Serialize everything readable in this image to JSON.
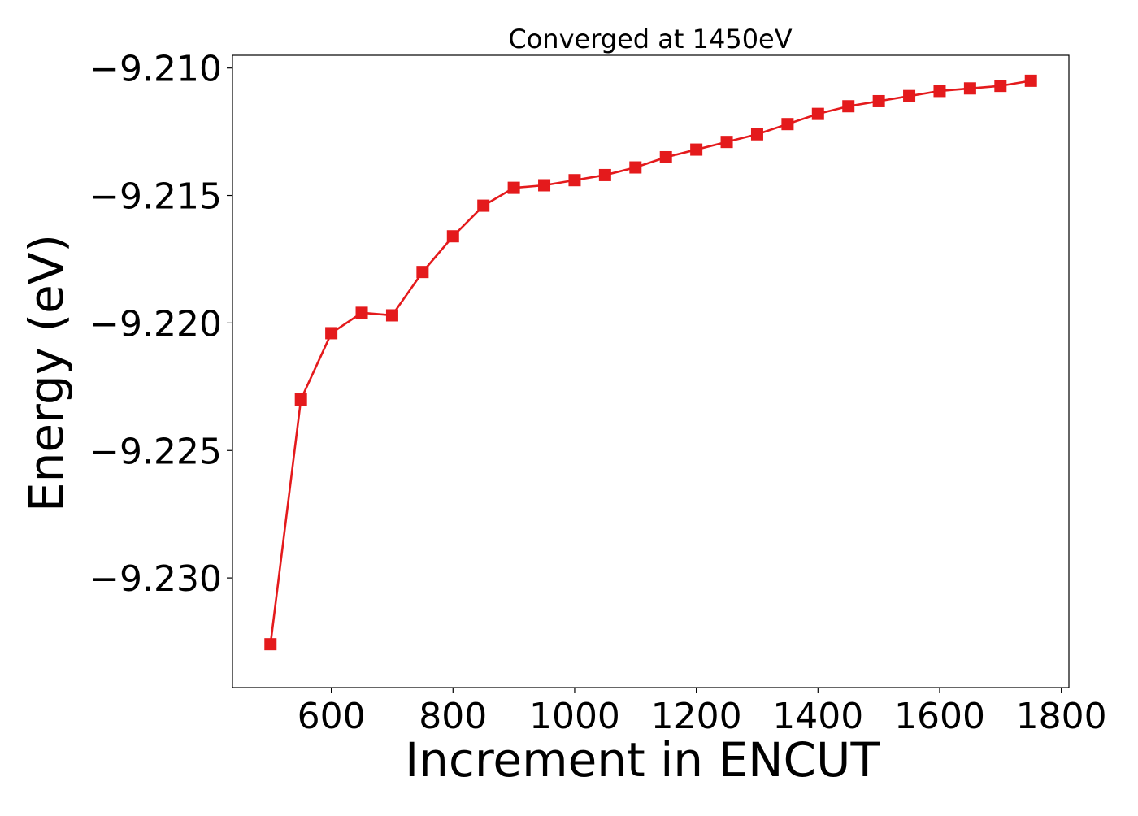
{
  "chart_data": {
    "type": "line",
    "title": "Converged at 1450eV",
    "xlabel": "Increment in ENCUT",
    "ylabel": "Energy (eV)",
    "xlim": [
      437.5,
      1812.5
    ],
    "ylim": [
      -9.2343,
      -9.2095
    ],
    "xticks": [
      600,
      800,
      1000,
      1200,
      1400,
      1600,
      1800
    ],
    "xtick_labels": [
      "600",
      "800",
      "1000",
      "1200",
      "1400",
      "1600",
      "1800"
    ],
    "yticks": [
      -9.21,
      -9.215,
      -9.22,
      -9.225,
      -9.23
    ],
    "ytick_labels": [
      "−9.210",
      "−9.215",
      "−9.220",
      "−9.225",
      "−9.230"
    ],
    "grid": false,
    "legend": "none",
    "marker": "square",
    "color": "#e41a1c",
    "series": [
      {
        "x": [
          500,
          550,
          600,
          650,
          700,
          750,
          800,
          850,
          900,
          950,
          1000,
          1050,
          1100,
          1150,
          1200,
          1250,
          1300,
          1350,
          1400,
          1450,
          1500,
          1550,
          1600,
          1650,
          1700,
          1750
        ],
        "y": [
          -9.2326,
          -9.223,
          -9.2204,
          -9.2196,
          -9.2197,
          -9.218,
          -9.2166,
          -9.2154,
          -9.2147,
          -9.2146,
          -9.2144,
          -9.2142,
          -9.2139,
          -9.2135,
          -9.2132,
          -9.2129,
          -9.2126,
          -9.2122,
          -9.2118,
          -9.2115,
          -9.2113,
          -9.2111,
          -9.2109,
          -9.2108,
          -9.2107,
          -9.2105
        ]
      }
    ]
  }
}
